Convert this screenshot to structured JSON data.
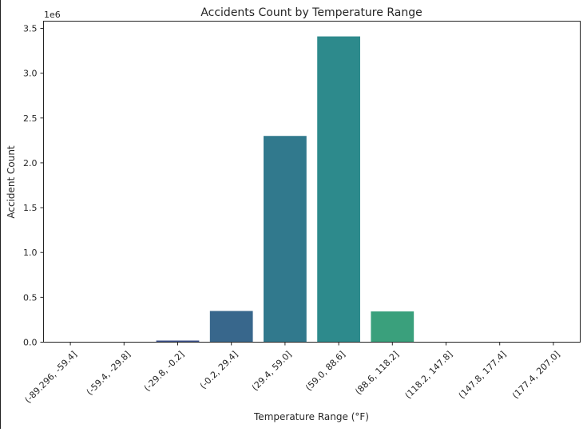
{
  "chart_data": {
    "type": "bar",
    "title": "Accidents Count by Temperature Range",
    "xlabel": "Temperature Range (°F)",
    "ylabel": "Accident Count",
    "y_offset_label": "1e6",
    "y_scale": 1000000,
    "categories": [
      "(-89.296, -59.4]",
      "(-59.4, -29.8]",
      "(-29.8, -0.2]",
      "(-0.2, 29.4]",
      "(29.4, 59.0]",
      "(59.0, 88.6]",
      "(88.6, 118.2]",
      "(118.2, 147.8]",
      "(147.8, 177.4]",
      "(177.4, 207.0]"
    ],
    "values": [
      100,
      1500,
      18000,
      348000,
      2300000,
      3410000,
      343000,
      100,
      0,
      0
    ],
    "colors": [
      "#45337d",
      "#414487",
      "#3b518b",
      "#38678c",
      "#31798d",
      "#2d8a8c",
      "#3aa07c",
      "#58b46a",
      "#7ec55a",
      "#a8d34c"
    ],
    "ylim": [
      0,
      3580000
    ],
    "yticks": [
      0,
      500000,
      1000000,
      1500000,
      2000000,
      2500000,
      3000000,
      3500000
    ],
    "ytick_labels": [
      "0.0",
      "0.5",
      "1.0",
      "1.5",
      "2.0",
      "2.5",
      "3.0",
      "3.5"
    ],
    "grid": false,
    "legend": false
  }
}
